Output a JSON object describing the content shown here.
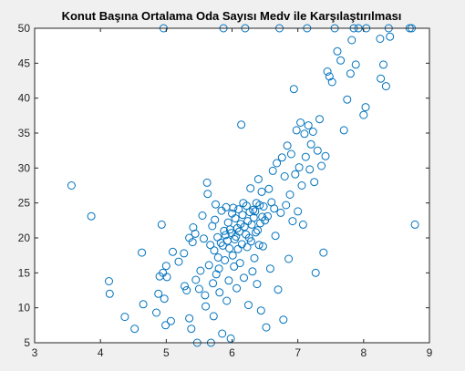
{
  "chart_data": {
    "type": "scatter",
    "title": "Konut Başına Ortalama Oda Sayısı Medv ile Karşılaştırılması",
    "xlabel": "",
    "ylabel": "",
    "xlim": [
      3,
      9
    ],
    "ylim": [
      5,
      50
    ],
    "xticks": [
      3,
      4,
      5,
      6,
      7,
      8,
      9
    ],
    "yticks": [
      5,
      10,
      15,
      20,
      25,
      30,
      35,
      40,
      45,
      50
    ],
    "grid": false,
    "box": true,
    "colors": {
      "marker": "#0072BD",
      "axes": "#ffffff",
      "figure": "#f0f0f0"
    },
    "series": [
      {
        "points": [
          [
            3.56,
            27.5
          ],
          [
            3.86,
            23.1
          ],
          [
            4.13,
            13.8
          ],
          [
            4.14,
            12.0
          ],
          [
            4.37,
            8.7
          ],
          [
            4.52,
            7.0
          ],
          [
            4.63,
            17.9
          ],
          [
            4.65,
            10.5
          ],
          [
            4.85,
            9.3
          ],
          [
            4.88,
            12.0
          ],
          [
            4.9,
            14.5
          ],
          [
            4.93,
            21.9
          ],
          [
            4.95,
            15.0
          ],
          [
            4.96,
            50.0
          ],
          [
            4.97,
            11.3
          ],
          [
            4.99,
            7.5
          ],
          [
            5.0,
            16.0
          ],
          [
            5.01,
            14.4
          ],
          [
            5.07,
            8.1
          ],
          [
            5.1,
            18.0
          ],
          [
            5.19,
            16.6
          ],
          [
            5.27,
            17.8
          ],
          [
            5.28,
            13.1
          ],
          [
            5.31,
            12.5
          ],
          [
            5.35,
            20.0
          ],
          [
            5.35,
            8.5
          ],
          [
            5.38,
            7.0
          ],
          [
            5.4,
            19.4
          ],
          [
            5.41,
            21.5
          ],
          [
            5.44,
            20.6
          ],
          [
            5.45,
            14.0
          ],
          [
            5.47,
            5.0
          ],
          [
            5.5,
            12.7
          ],
          [
            5.52,
            15.3
          ],
          [
            5.55,
            23.2
          ],
          [
            5.57,
            19.9
          ],
          [
            5.59,
            11.8
          ],
          [
            5.6,
            10.2
          ],
          [
            5.62,
            27.9
          ],
          [
            5.63,
            26.3
          ],
          [
            5.65,
            16.1
          ],
          [
            5.67,
            19.0
          ],
          [
            5.68,
            5.0
          ],
          [
            5.7,
            21.7
          ],
          [
            5.71,
            13.5
          ],
          [
            5.72,
            8.8
          ],
          [
            5.73,
            18.2
          ],
          [
            5.74,
            22.6
          ],
          [
            5.75,
            24.8
          ],
          [
            5.76,
            14.8
          ],
          [
            5.78,
            20.1
          ],
          [
            5.79,
            17.2
          ],
          [
            5.8,
            15.6
          ],
          [
            5.81,
            12.2
          ],
          [
            5.83,
            19.3
          ],
          [
            5.84,
            23.9
          ],
          [
            5.85,
            6.3
          ],
          [
            5.86,
            18.9
          ],
          [
            5.87,
            50.0
          ],
          [
            5.88,
            21.0
          ],
          [
            5.89,
            16.8
          ],
          [
            5.9,
            20.4
          ],
          [
            5.91,
            24.4
          ],
          [
            5.92,
            11.0
          ],
          [
            5.93,
            19.6
          ],
          [
            5.94,
            22.2
          ],
          [
            5.95,
            13.9
          ],
          [
            5.96,
            18.5
          ],
          [
            5.97,
            21.2
          ],
          [
            5.98,
            5.6
          ],
          [
            5.99,
            20.7
          ],
          [
            6.0,
            23.5
          ],
          [
            6.01,
            17.5
          ],
          [
            6.02,
            24.3
          ],
          [
            6.03,
            15.9
          ],
          [
            6.04,
            19.8
          ],
          [
            6.05,
            22.8
          ],
          [
            6.06,
            20.2
          ],
          [
            6.07,
            12.8
          ],
          [
            6.08,
            21.4
          ],
          [
            6.09,
            18.4
          ],
          [
            6.1,
            24.1
          ],
          [
            6.11,
            20.9
          ],
          [
            6.12,
            16.4
          ],
          [
            6.13,
            22.0
          ],
          [
            6.14,
            36.2
          ],
          [
            6.15,
            19.1
          ],
          [
            6.16,
            23.3
          ],
          [
            6.17,
            25.0
          ],
          [
            6.18,
            14.3
          ],
          [
            6.19,
            21.6
          ],
          [
            6.2,
            50.0
          ],
          [
            6.21,
            20.5
          ],
          [
            6.22,
            24.6
          ],
          [
            6.23,
            18.7
          ],
          [
            6.24,
            22.4
          ],
          [
            6.25,
            10.4
          ],
          [
            6.26,
            20.0
          ],
          [
            6.27,
            23.7
          ],
          [
            6.28,
            27.1
          ],
          [
            6.29,
            19.5
          ],
          [
            6.3,
            21.9
          ],
          [
            6.31,
            15.2
          ],
          [
            6.32,
            24.0
          ],
          [
            6.33,
            22.9
          ],
          [
            6.34,
            17.1
          ],
          [
            6.35,
            23.8
          ],
          [
            6.36,
            20.8
          ],
          [
            6.37,
            25.0
          ],
          [
            6.38,
            13.4
          ],
          [
            6.39,
            21.1
          ],
          [
            6.4,
            28.4
          ],
          [
            6.41,
            19.0
          ],
          [
            6.42,
            24.7
          ],
          [
            6.43,
            22.1
          ],
          [
            6.44,
            9.6
          ],
          [
            6.45,
            26.6
          ],
          [
            6.46,
            23.0
          ],
          [
            6.47,
            18.8
          ],
          [
            6.48,
            24.5
          ],
          [
            6.5,
            22.5
          ],
          [
            6.52,
            7.2
          ],
          [
            6.54,
            23.1
          ],
          [
            6.56,
            27.0
          ],
          [
            6.58,
            15.6
          ],
          [
            6.6,
            25.1
          ],
          [
            6.62,
            29.6
          ],
          [
            6.64,
            24.2
          ],
          [
            6.66,
            20.3
          ],
          [
            6.68,
            30.7
          ],
          [
            6.7,
            12.6
          ],
          [
            6.72,
            50.0
          ],
          [
            6.74,
            23.6
          ],
          [
            6.76,
            31.5
          ],
          [
            6.78,
            8.3
          ],
          [
            6.8,
            28.8
          ],
          [
            6.82,
            24.7
          ],
          [
            6.84,
            33.2
          ],
          [
            6.86,
            17.0
          ],
          [
            6.88,
            26.2
          ],
          [
            6.9,
            32.0
          ],
          [
            6.92,
            22.4
          ],
          [
            6.94,
            41.3
          ],
          [
            6.96,
            29.1
          ],
          [
            6.98,
            35.4
          ],
          [
            7.0,
            23.8
          ],
          [
            7.02,
            30.1
          ],
          [
            7.04,
            36.5
          ],
          [
            7.06,
            27.5
          ],
          [
            7.08,
            21.9
          ],
          [
            7.1,
            34.9
          ],
          [
            7.12,
            31.6
          ],
          [
            7.14,
            50.0
          ],
          [
            7.16,
            36.1
          ],
          [
            7.18,
            29.8
          ],
          [
            7.2,
            33.4
          ],
          [
            7.23,
            35.2
          ],
          [
            7.25,
            28.0
          ],
          [
            7.27,
            15.0
          ],
          [
            7.3,
            32.5
          ],
          [
            7.33,
            37.0
          ],
          [
            7.36,
            30.3
          ],
          [
            7.39,
            17.9
          ],
          [
            7.42,
            31.7
          ],
          [
            7.45,
            43.8
          ],
          [
            7.48,
            43.1
          ],
          [
            7.52,
            42.3
          ],
          [
            7.56,
            50.0
          ],
          [
            7.6,
            46.7
          ],
          [
            7.65,
            45.4
          ],
          [
            7.7,
            35.4
          ],
          [
            7.75,
            39.8
          ],
          [
            7.8,
            43.5
          ],
          [
            7.82,
            48.3
          ],
          [
            7.85,
            50.0
          ],
          [
            7.88,
            44.8
          ],
          [
            7.92,
            50.0
          ],
          [
            8.0,
            37.6
          ],
          [
            8.03,
            38.7
          ],
          [
            8.04,
            50.0
          ],
          [
            8.25,
            48.5
          ],
          [
            8.26,
            42.8
          ],
          [
            8.3,
            44.8
          ],
          [
            8.34,
            41.7
          ],
          [
            8.38,
            50.0
          ],
          [
            8.4,
            48.8
          ],
          [
            8.7,
            50.0
          ],
          [
            8.73,
            50.0
          ],
          [
            8.78,
            21.9
          ]
        ]
      }
    ]
  }
}
